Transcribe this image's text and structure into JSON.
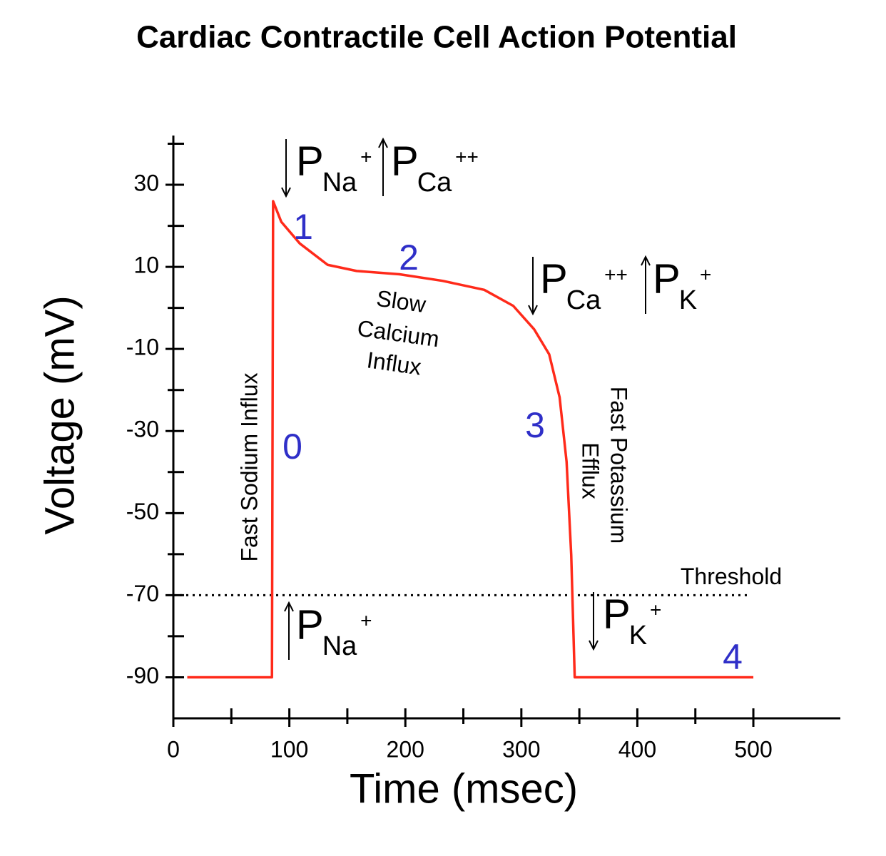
{
  "chart_data": {
    "type": "line",
    "title": "Cardiac Contractile Cell Action Potential",
    "x_label": "Time (msec)",
    "y_label": "Voltage (mV)",
    "series": [
      {
        "color": "#ff2a1a",
        "x": [
          12,
          85,
          86,
          93,
          109,
          133,
          158,
          195,
          232,
          268,
          293,
          311,
          324,
          333,
          339,
          343,
          346,
          500
        ],
        "values": [
          -90,
          -90,
          26,
          21,
          15.7,
          10.5,
          9,
          8.2,
          6.6,
          4.4,
          0.5,
          -5.2,
          -11.3,
          -21.8,
          -37.5,
          -60.2,
          -90,
          -90
        ]
      }
    ],
    "xlim": [
      0,
      575
    ],
    "xticks": [
      0,
      100,
      200,
      300,
      400,
      500
    ],
    "xminorticks": [
      50,
      150,
      250,
      350,
      450
    ],
    "ylim": [
      -100,
      42
    ],
    "yticks": [
      30,
      10,
      -10,
      -30,
      -50,
      -70,
      -90
    ],
    "yminorticks": [
      40,
      20,
      0,
      -20,
      -40,
      -60,
      -80
    ],
    "threshold": {
      "value": -70,
      "label": "Threshold"
    },
    "phases": [
      "0",
      "1",
      "2",
      "3",
      "4"
    ],
    "phase_color": "#2f2fc8",
    "permeability": [
      {
        "arrow": "down",
        "symbol": "P",
        "ion": "Na",
        "charge": "+"
      },
      {
        "arrow": "up",
        "symbol": "P",
        "ion": "Ca",
        "charge": "++"
      },
      {
        "arrow": "down",
        "symbol": "P",
        "ion": "Ca",
        "charge": "++"
      },
      {
        "arrow": "up",
        "symbol": "P",
        "ion": "K",
        "charge": "+"
      },
      {
        "arrow": "up",
        "symbol": "P",
        "ion": "Na",
        "charge": "+"
      },
      {
        "arrow": "down",
        "symbol": "P",
        "ion": "K",
        "charge": "+"
      }
    ],
    "annotations": [
      "Fast Sodium Influx",
      "Slow",
      "Calcium",
      "Influx",
      "Fast Potassium",
      "Efflux"
    ]
  }
}
